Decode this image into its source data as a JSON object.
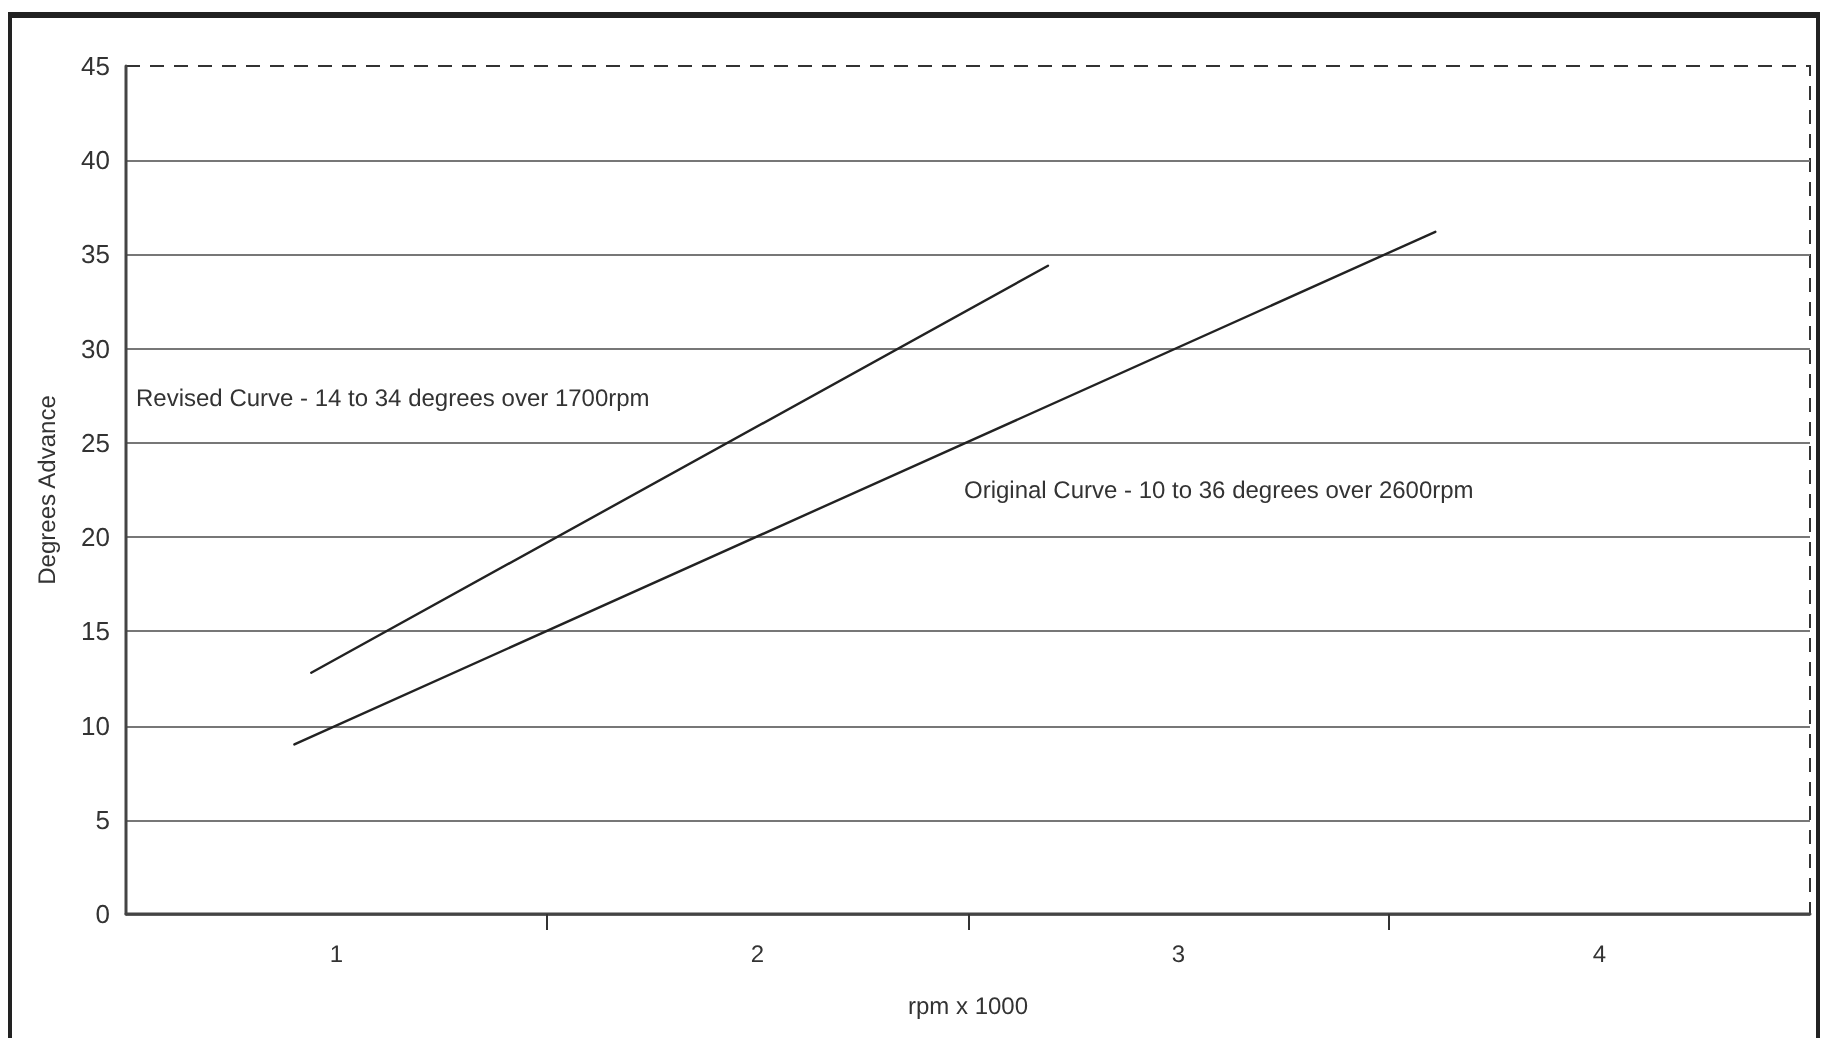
{
  "chart_data": {
    "type": "line",
    "xlabel": "rpm x 1000",
    "ylabel": "Degrees Advance",
    "series": [
      {
        "color": "#222222",
        "x": [
          0.94,
          2.69
        ],
        "values": [
          12.8,
          34.4
        ]
      },
      {
        "color": "#222222",
        "x": [
          0.9,
          3.61
        ],
        "values": [
          9.0,
          36.2
        ]
      }
    ],
    "annotations": [
      "Revised Curve - 14 to 34 degrees over 1700rpm",
      "Original Curve - 10 to 36 degrees over 2600rpm"
    ],
    "xlim": [
      0.5,
      4.5
    ],
    "xticks": [
      1,
      {
        "value": 1.5,
        "label": null
      },
      2,
      {
        "value": 2.5,
        "label": null
      },
      3,
      {
        "value": 3.5,
        "label": null
      },
      4
    ],
    "ylim": [
      0,
      45
    ],
    "yticks": [
      0,
      5,
      10,
      15,
      20,
      25,
      30,
      35,
      40,
      45
    ],
    "grid": "y",
    "marker": "none",
    "line_style": "solid"
  }
}
